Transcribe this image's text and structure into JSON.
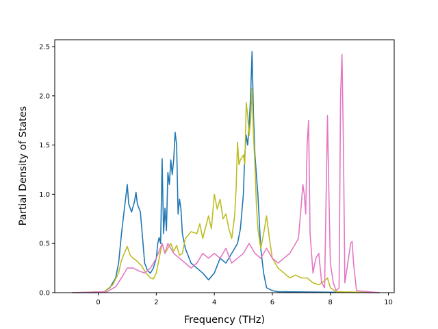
{
  "chart_data": {
    "type": "line",
    "title": "",
    "xlabel": "Frequency (THz)",
    "ylabel": "Partial Density of States",
    "xlim": [
      -1.5,
      10.2
    ],
    "ylim": [
      0,
      2.57
    ],
    "xticks": [
      0,
      2,
      4,
      6,
      8,
      10
    ],
    "yticks": [
      0.0,
      0.5,
      1.0,
      1.5,
      2.0,
      2.5
    ],
    "grid": false,
    "legend": "none",
    "series": [
      {
        "color": "#1f77b4",
        "points": [
          [
            -0.9,
            0
          ],
          [
            0.0,
            0
          ],
          [
            0.2,
            0.01
          ],
          [
            0.4,
            0.05
          ],
          [
            0.6,
            0.15
          ],
          [
            0.7,
            0.3
          ],
          [
            0.8,
            0.6
          ],
          [
            0.9,
            0.85
          ],
          [
            1.0,
            1.1
          ],
          [
            1.05,
            0.9
          ],
          [
            1.15,
            0.82
          ],
          [
            1.25,
            0.93
          ],
          [
            1.3,
            1.02
          ],
          [
            1.35,
            0.9
          ],
          [
            1.45,
            0.82
          ],
          [
            1.5,
            0.65
          ],
          [
            1.6,
            0.3
          ],
          [
            1.7,
            0.22
          ],
          [
            1.8,
            0.2
          ],
          [
            1.9,
            0.25
          ],
          [
            2.0,
            0.35
          ],
          [
            2.05,
            0.5
          ],
          [
            2.1,
            0.56
          ],
          [
            2.15,
            0.5
          ],
          [
            2.2,
            1.36
          ],
          [
            2.25,
            0.6
          ],
          [
            2.3,
            0.86
          ],
          [
            2.35,
            0.63
          ],
          [
            2.4,
            1.22
          ],
          [
            2.45,
            1.1
          ],
          [
            2.5,
            1.35
          ],
          [
            2.55,
            1.2
          ],
          [
            2.6,
            1.35
          ],
          [
            2.65,
            1.63
          ],
          [
            2.7,
            1.5
          ],
          [
            2.75,
            0.8
          ],
          [
            2.8,
            0.95
          ],
          [
            2.85,
            0.85
          ],
          [
            2.9,
            0.6
          ],
          [
            3.0,
            0.45
          ],
          [
            3.2,
            0.3
          ],
          [
            3.4,
            0.25
          ],
          [
            3.6,
            0.2
          ],
          [
            3.8,
            0.13
          ],
          [
            4.0,
            0.2
          ],
          [
            4.2,
            0.35
          ],
          [
            4.4,
            0.3
          ],
          [
            4.6,
            0.4
          ],
          [
            4.8,
            0.5
          ],
          [
            4.9,
            0.65
          ],
          [
            5.0,
            1.0
          ],
          [
            5.05,
            1.4
          ],
          [
            5.1,
            1.6
          ],
          [
            5.15,
            1.5
          ],
          [
            5.2,
            1.7
          ],
          [
            5.25,
            2.0
          ],
          [
            5.3,
            2.45
          ],
          [
            5.35,
            1.8
          ],
          [
            5.4,
            1.4
          ],
          [
            5.5,
            1.0
          ],
          [
            5.6,
            0.45
          ],
          [
            5.7,
            0.2
          ],
          [
            5.8,
            0.05
          ],
          [
            6.0,
            0.02
          ],
          [
            6.2,
            0.01
          ],
          [
            9.7,
            0
          ]
        ]
      },
      {
        "color": "#bcbd22",
        "points": [
          [
            -0.9,
            0
          ],
          [
            0.2,
            0.01
          ],
          [
            0.5,
            0.08
          ],
          [
            0.7,
            0.2
          ],
          [
            0.8,
            0.33
          ],
          [
            0.9,
            0.4
          ],
          [
            1.0,
            0.47
          ],
          [
            1.1,
            0.38
          ],
          [
            1.2,
            0.35
          ],
          [
            1.3,
            0.33
          ],
          [
            1.4,
            0.3
          ],
          [
            1.5,
            0.27
          ],
          [
            1.6,
            0.22
          ],
          [
            1.7,
            0.18
          ],
          [
            1.8,
            0.15
          ],
          [
            1.9,
            0.14
          ],
          [
            2.0,
            0.2
          ],
          [
            2.1,
            0.35
          ],
          [
            2.2,
            0.5
          ],
          [
            2.3,
            0.4
          ],
          [
            2.4,
            0.45
          ],
          [
            2.5,
            0.5
          ],
          [
            2.6,
            0.42
          ],
          [
            2.7,
            0.48
          ],
          [
            2.8,
            0.38
          ],
          [
            2.9,
            0.4
          ],
          [
            3.0,
            0.55
          ],
          [
            3.2,
            0.62
          ],
          [
            3.4,
            0.6
          ],
          [
            3.5,
            0.7
          ],
          [
            3.6,
            0.55
          ],
          [
            3.8,
            0.78
          ],
          [
            3.9,
            0.65
          ],
          [
            4.0,
            1.0
          ],
          [
            4.1,
            0.85
          ],
          [
            4.2,
            0.95
          ],
          [
            4.3,
            0.75
          ],
          [
            4.4,
            0.8
          ],
          [
            4.5,
            0.65
          ],
          [
            4.6,
            0.55
          ],
          [
            4.7,
            0.78
          ],
          [
            4.75,
            1.05
          ],
          [
            4.8,
            1.53
          ],
          [
            4.85,
            1.3
          ],
          [
            4.9,
            1.35
          ],
          [
            5.0,
            1.4
          ],
          [
            5.05,
            1.3
          ],
          [
            5.1,
            1.93
          ],
          [
            5.15,
            1.8
          ],
          [
            5.2,
            1.6
          ],
          [
            5.25,
            1.75
          ],
          [
            5.3,
            2.08
          ],
          [
            5.35,
            1.6
          ],
          [
            5.4,
            1.3
          ],
          [
            5.45,
            0.9
          ],
          [
            5.5,
            0.65
          ],
          [
            5.6,
            0.45
          ],
          [
            5.7,
            0.6
          ],
          [
            5.8,
            0.78
          ],
          [
            5.9,
            0.55
          ],
          [
            6.0,
            0.35
          ],
          [
            6.2,
            0.25
          ],
          [
            6.4,
            0.2
          ],
          [
            6.6,
            0.15
          ],
          [
            6.8,
            0.18
          ],
          [
            7.0,
            0.15
          ],
          [
            7.2,
            0.15
          ],
          [
            7.4,
            0.1
          ],
          [
            7.6,
            0.08
          ],
          [
            7.8,
            0.12
          ],
          [
            7.9,
            0.15
          ],
          [
            8.0,
            0.05
          ],
          [
            8.2,
            0.01
          ],
          [
            9.7,
            0
          ]
        ]
      },
      {
        "color": "#e377c2",
        "points": [
          [
            -0.9,
            0
          ],
          [
            0.3,
            0.01
          ],
          [
            0.6,
            0.06
          ],
          [
            0.8,
            0.15
          ],
          [
            1.0,
            0.25
          ],
          [
            1.2,
            0.25
          ],
          [
            1.4,
            0.22
          ],
          [
            1.6,
            0.2
          ],
          [
            1.8,
            0.25
          ],
          [
            2.0,
            0.35
          ],
          [
            2.2,
            0.5
          ],
          [
            2.3,
            0.4
          ],
          [
            2.4,
            0.5
          ],
          [
            2.5,
            0.45
          ],
          [
            2.6,
            0.4
          ],
          [
            2.8,
            0.35
          ],
          [
            3.0,
            0.3
          ],
          [
            3.2,
            0.25
          ],
          [
            3.4,
            0.3
          ],
          [
            3.6,
            0.4
          ],
          [
            3.8,
            0.35
          ],
          [
            4.0,
            0.4
          ],
          [
            4.2,
            0.35
          ],
          [
            4.4,
            0.45
          ],
          [
            4.6,
            0.3
          ],
          [
            4.8,
            0.35
          ],
          [
            5.0,
            0.4
          ],
          [
            5.2,
            0.5
          ],
          [
            5.4,
            0.4
          ],
          [
            5.6,
            0.35
          ],
          [
            5.8,
            0.45
          ],
          [
            6.0,
            0.35
          ],
          [
            6.2,
            0.3
          ],
          [
            6.4,
            0.35
          ],
          [
            6.6,
            0.4
          ],
          [
            6.8,
            0.5
          ],
          [
            6.9,
            0.55
          ],
          [
            7.0,
            0.9
          ],
          [
            7.05,
            1.1
          ],
          [
            7.1,
            1.0
          ],
          [
            7.15,
            0.8
          ],
          [
            7.2,
            1.5
          ],
          [
            7.25,
            1.75
          ],
          [
            7.3,
            0.6
          ],
          [
            7.35,
            0.4
          ],
          [
            7.4,
            0.2
          ],
          [
            7.5,
            0.35
          ],
          [
            7.6,
            0.4
          ],
          [
            7.7,
            0.1
          ],
          [
            7.8,
            0.05
          ],
          [
            7.9,
            1.8
          ],
          [
            7.95,
            1.0
          ],
          [
            8.0,
            0.3
          ],
          [
            8.1,
            0.1
          ],
          [
            8.2,
            0.02
          ],
          [
            8.3,
            0.05
          ],
          [
            8.35,
            2.0
          ],
          [
            8.4,
            2.42
          ],
          [
            8.45,
            1.5
          ],
          [
            8.5,
            0.1
          ],
          [
            8.6,
            0.3
          ],
          [
            8.7,
            0.5
          ],
          [
            8.75,
            0.52
          ],
          [
            8.8,
            0.3
          ],
          [
            8.9,
            0.02
          ],
          [
            9.7,
            0
          ]
        ]
      }
    ]
  }
}
